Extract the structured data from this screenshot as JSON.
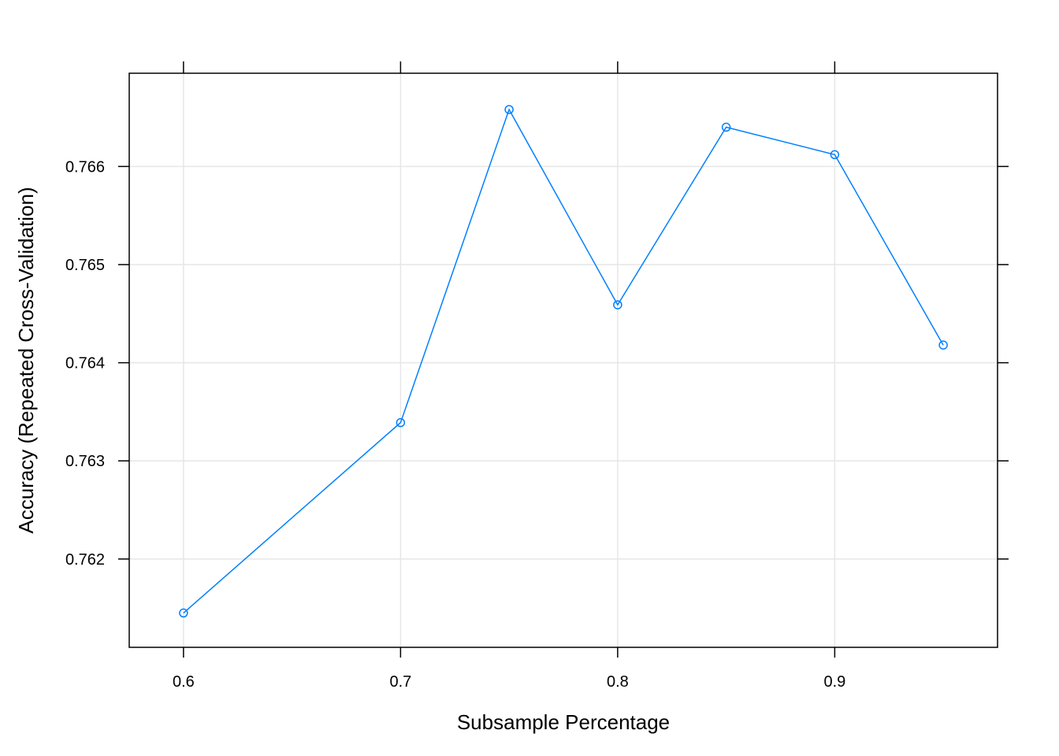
{
  "chart_data": {
    "type": "line",
    "xlabel": "Subsample Percentage",
    "ylabel": "Accuracy (Repeated Cross-Validation)",
    "x": [
      0.6,
      0.7,
      0.75,
      0.8,
      0.85,
      0.9,
      0.95
    ],
    "series": [
      {
        "values": [
          0.76145,
          0.76339,
          0.76658,
          0.76459,
          0.7664,
          0.76612,
          0.76418
        ]
      }
    ],
    "xlim": [
      0.575,
      0.975
    ],
    "ylim": [
      0.7611,
      0.76695
    ],
    "xticks": [
      0.6,
      0.7,
      0.8,
      0.9
    ],
    "xtick_labels": [
      "0.6",
      "0.7",
      "0.8",
      "0.9"
    ],
    "yticks": [
      0.762,
      0.763,
      0.764,
      0.765,
      0.766
    ],
    "ytick_labels": [
      "0.762",
      "0.763",
      "0.764",
      "0.765",
      "0.766"
    ],
    "grid": true,
    "colors": {
      "line": "#0080ff",
      "grid": "#e6e6e6",
      "frame": "#000000"
    }
  }
}
